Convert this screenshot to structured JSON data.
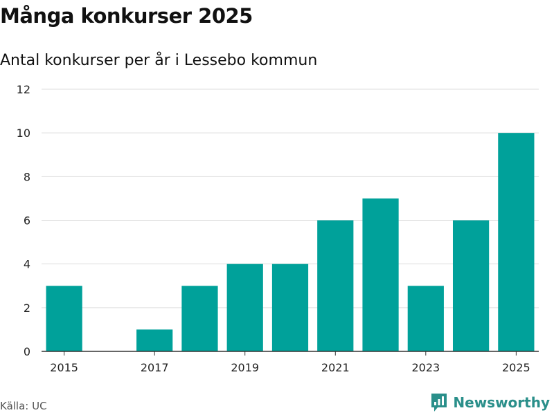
{
  "header": {
    "title": "Många konkurser 2025",
    "subtitle": "Antal konkurser per år i Lessebo kommun"
  },
  "footer": {
    "source": "Källa: UC",
    "brand": "Newsworthy"
  },
  "colors": {
    "bar": "#00a19a",
    "grid": "#dddddd",
    "axis": "#333333",
    "brand": "#2a8f8a"
  },
  "chart_data": {
    "type": "bar",
    "title": "Många konkurser 2025",
    "subtitle": "Antal konkurser per år i Lessebo kommun",
    "xlabel": "",
    "ylabel": "",
    "categories": [
      "2015",
      "2016",
      "2017",
      "2018",
      "2019",
      "2020",
      "2021",
      "2022",
      "2023",
      "2024",
      "2025"
    ],
    "values": [
      3,
      0,
      1,
      3,
      4,
      4,
      6,
      7,
      3,
      6,
      10
    ],
    "ylim": [
      0,
      12
    ],
    "yticks": [
      "0",
      "2",
      "4",
      "6",
      "8",
      "10",
      "12"
    ],
    "xticks": [
      "2015",
      "2017",
      "2019",
      "2021",
      "2023",
      "2025"
    ],
    "grid": true
  }
}
